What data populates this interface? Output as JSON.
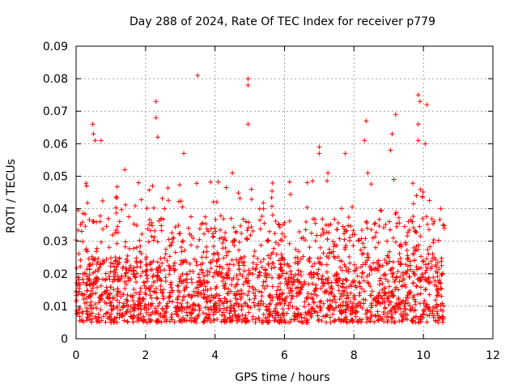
{
  "chart_data": {
    "type": "scatter",
    "title": "Day 288 of 2024, Rate Of TEC Index for receiver p779",
    "xlabel": "GPS time / hours",
    "ylabel": "ROTI / TECUs",
    "xlim": [
      0,
      12
    ],
    "ylim": [
      0,
      0.09
    ],
    "xticks": [
      0,
      2,
      4,
      6,
      8,
      10,
      12
    ],
    "yticks": [
      0,
      0.01,
      0.02,
      0.03,
      0.04,
      0.05,
      0.06,
      0.07,
      0.08,
      0.09
    ],
    "xtick_labels": [
      "0",
      "2",
      "4",
      "6",
      "8",
      "10",
      "12"
    ],
    "ytick_labels": [
      "0",
      "0.01",
      "0.02",
      "0.03",
      "0.04",
      "0.05",
      "0.06",
      "0.07",
      "0.08",
      "0.09"
    ],
    "grid": true,
    "marker": "+",
    "series": [
      {
        "name": "ROTI",
        "color": "#ff0000",
        "x_range": [
          0.0,
          10.6
        ],
        "background_band": [
          0.005,
          0.025
        ],
        "notable_points": [
          {
            "x": 0.48,
            "y": 0.066
          },
          {
            "x": 0.5,
            "y": 0.063
          },
          {
            "x": 0.55,
            "y": 0.061
          },
          {
            "x": 0.72,
            "y": 0.061
          },
          {
            "x": 0.3,
            "y": 0.047
          },
          {
            "x": 1.4,
            "y": 0.052
          },
          {
            "x": 1.8,
            "y": 0.048
          },
          {
            "x": 2.3,
            "y": 0.073
          },
          {
            "x": 2.3,
            "y": 0.068
          },
          {
            "x": 2.35,
            "y": 0.062
          },
          {
            "x": 2.2,
            "y": 0.047
          },
          {
            "x": 3.1,
            "y": 0.057
          },
          {
            "x": 3.5,
            "y": 0.081
          },
          {
            "x": 4.5,
            "y": 0.051
          },
          {
            "x": 4.95,
            "y": 0.08
          },
          {
            "x": 4.95,
            "y": 0.078
          },
          {
            "x": 4.95,
            "y": 0.066
          },
          {
            "x": 5.05,
            "y": 0.046
          },
          {
            "x": 7.0,
            "y": 0.059
          },
          {
            "x": 7.0,
            "y": 0.057
          },
          {
            "x": 7.25,
            "y": 0.051
          },
          {
            "x": 7.75,
            "y": 0.057
          },
          {
            "x": 8.35,
            "y": 0.067
          },
          {
            "x": 8.3,
            "y": 0.061
          },
          {
            "x": 8.4,
            "y": 0.051
          },
          {
            "x": 9.2,
            "y": 0.069
          },
          {
            "x": 9.1,
            "y": 0.063
          },
          {
            "x": 9.05,
            "y": 0.058
          },
          {
            "x": 9.15,
            "y": 0.049
          },
          {
            "x": 9.85,
            "y": 0.075
          },
          {
            "x": 9.9,
            "y": 0.073
          },
          {
            "x": 10.1,
            "y": 0.072
          },
          {
            "x": 9.85,
            "y": 0.066
          },
          {
            "x": 9.85,
            "y": 0.061
          },
          {
            "x": 10.05,
            "y": 0.06
          },
          {
            "x": 9.8,
            "y": 0.044
          },
          {
            "x": 10.5,
            "y": 0.04
          },
          {
            "x": 10.6,
            "y": 0.034
          }
        ]
      }
    ]
  }
}
